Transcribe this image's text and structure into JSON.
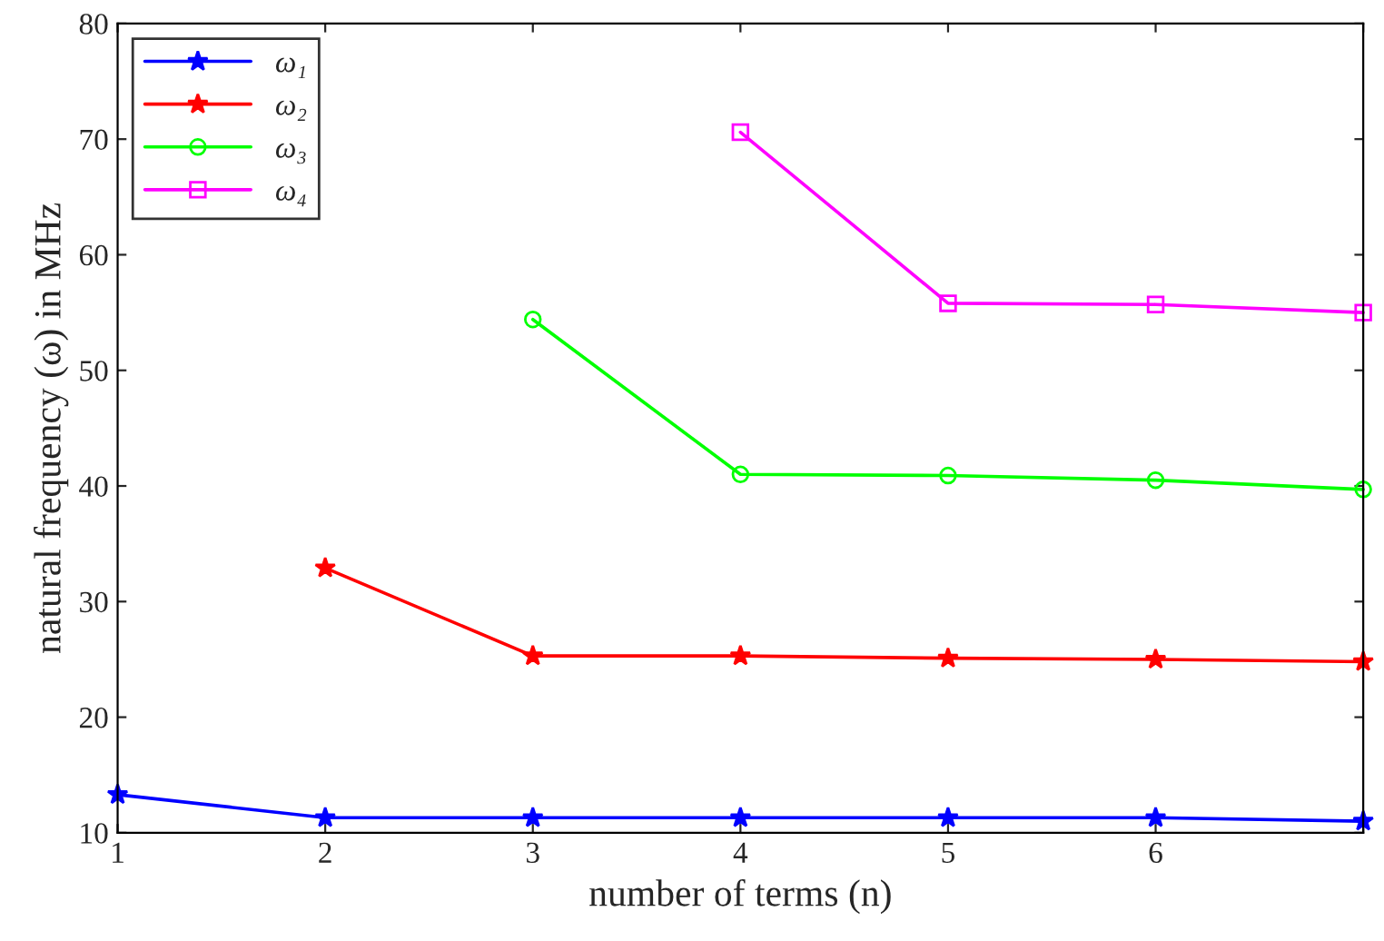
{
  "chart_data": {
    "type": "line",
    "xlabel": "number of terms (n)",
    "ylabel": "natural frequency (ω) in MHz",
    "x": [
      1,
      2,
      3,
      4,
      5,
      6,
      7
    ],
    "series": [
      {
        "name": "ω₁",
        "color": "#0000ff",
        "marker": "star",
        "values": [
          13.3,
          11.3,
          11.3,
          11.3,
          11.3,
          11.3,
          11.0
        ]
      },
      {
        "name": "ω₂",
        "color": "#ff0000",
        "marker": "star",
        "values": [
          null,
          32.9,
          25.3,
          25.3,
          25.1,
          25.0,
          24.8
        ]
      },
      {
        "name": "ω₃",
        "color": "#00ff00",
        "marker": "circle",
        "values": [
          null,
          null,
          54.4,
          41.0,
          40.9,
          40.5,
          39.7
        ]
      },
      {
        "name": "ω₄",
        "color": "#ff00ff",
        "marker": "square",
        "values": [
          null,
          null,
          null,
          70.6,
          55.8,
          55.7,
          55.0
        ]
      }
    ],
    "xlim": [
      1,
      7
    ],
    "xticks": [
      1,
      2,
      3,
      4,
      5,
      6,
      {
        "value": 7,
        "label": null
      }
    ],
    "ylim": [
      10,
      80
    ],
    "yticks": [
      10,
      20,
      30,
      40,
      50,
      60,
      70,
      80
    ],
    "grid": false,
    "legend": "top left",
    "line_style": "solid"
  }
}
